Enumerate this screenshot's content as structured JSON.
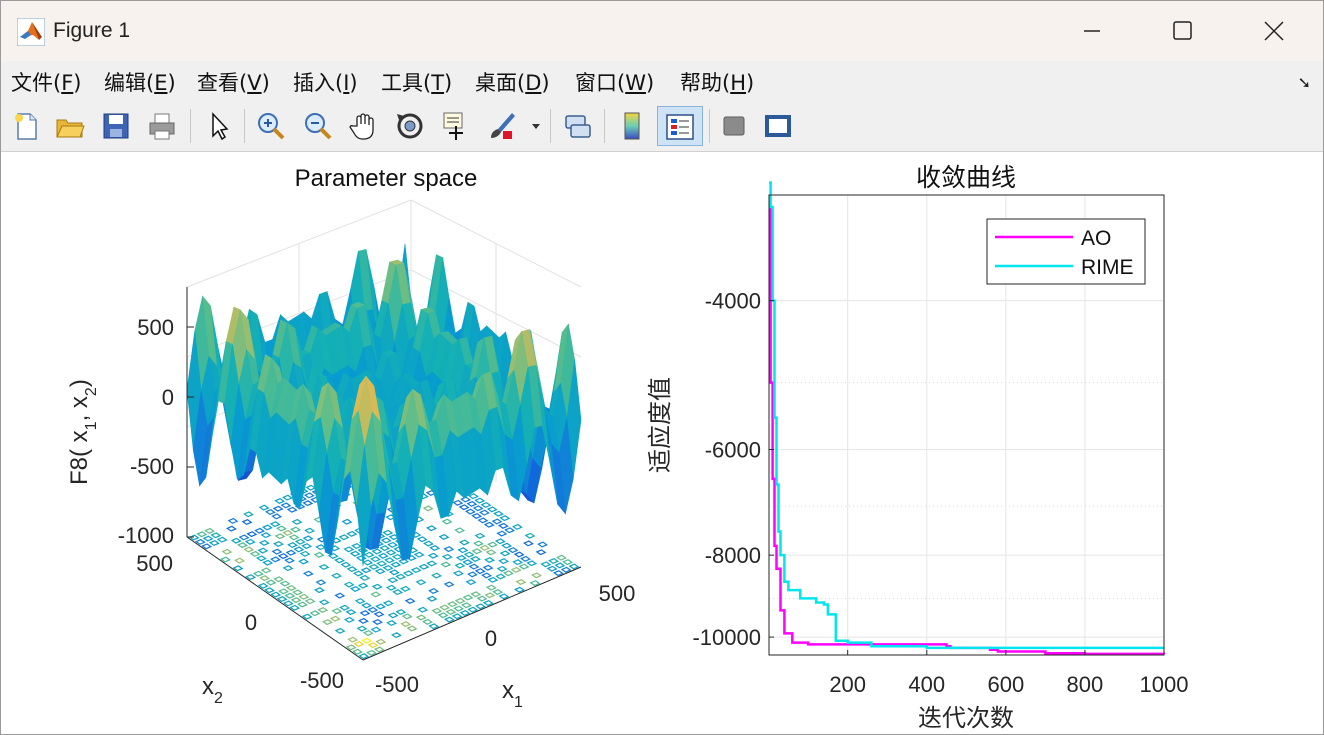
{
  "window": {
    "title": "Figure 1"
  },
  "menu": {
    "items": [
      {
        "label": "文件(F)",
        "pre": "文件(",
        "acc": "F",
        "post": ")"
      },
      {
        "label": "编辑(E)",
        "pre": "编辑(",
        "acc": "E",
        "post": ")"
      },
      {
        "label": "查看(V)",
        "pre": "查看(",
        "acc": "V",
        "post": ")"
      },
      {
        "label": "插入(I)",
        "pre": "插入(",
        "acc": "I",
        "post": ")"
      },
      {
        "label": "工具(T)",
        "pre": "工具(",
        "acc": "T",
        "post": ")"
      },
      {
        "label": "桌面(D)",
        "pre": "桌面(",
        "acc": "D",
        "post": ")"
      },
      {
        "label": "窗口(W)",
        "pre": "窗口(",
        "acc": "W",
        "post": ")"
      },
      {
        "label": "帮助(H)",
        "pre": "帮助(",
        "acc": "H",
        "post": ")"
      }
    ]
  },
  "toolbar": {
    "icons": [
      "new-figure-icon",
      "open-file-icon",
      "save-icon",
      "print-icon",
      "select-arrow-icon",
      "zoom-in-icon",
      "zoom-out-icon",
      "pan-hand-icon",
      "rotate-3d-icon",
      "data-cursor-icon",
      "brush-icon",
      "link-plot-icon",
      "colorbar-icon",
      "legend-icon",
      "hide-plot-tools-icon",
      "show-plot-tools-icon"
    ]
  },
  "surface_plot": {
    "title": "Parameter space",
    "zlabel_main": "F8( x",
    "zlabel_sub1": "1",
    "zlabel_sep": ", x",
    "zlabel_sub2": "2",
    "zlabel_end": ")",
    "xlabel_main": "x",
    "xlabel_sub": "1",
    "ylabel_main": "x",
    "ylabel_sub": "2",
    "z_ticks": [
      "500",
      "0",
      "-500",
      "-1000"
    ],
    "x_ticks": [
      "-500",
      "0",
      "500"
    ],
    "y_ticks": [
      "500",
      "0",
      "-500"
    ],
    "function": "F8"
  },
  "chart_data": {
    "type": "line",
    "title": "收敛曲线",
    "xlabel": "迭代次数",
    "ylabel": "适应度值",
    "xlim": [
      1,
      1000
    ],
    "ylim": [
      -10500,
      -3000
    ],
    "yscale": "symlog",
    "grid": true,
    "x_ticks": [
      "200",
      "400",
      "600",
      "800",
      "1000"
    ],
    "y_ticks": [
      "-4000",
      "-6000",
      "-8000",
      "-10000"
    ],
    "legend_position": "top-right",
    "series": [
      {
        "name": "AO",
        "color": "#ff00ff",
        "x": [
          1,
          5,
          10,
          15,
          20,
          30,
          40,
          60,
          100,
          200,
          440,
          450,
          460,
          520,
          560,
          580,
          700,
          800,
          1000
        ],
        "y": [
          -3100,
          -5000,
          -6500,
          -7800,
          -8300,
          -9300,
          -9900,
          -10150,
          -10200,
          -10200,
          -10200,
          -10250,
          -10300,
          -10300,
          -10350,
          -10400,
          -10450,
          -10470,
          -10480
        ]
      },
      {
        "name": "RIME",
        "color": "#00e5ee",
        "x": [
          1,
          5,
          10,
          15,
          20,
          25,
          30,
          40,
          50,
          80,
          100,
          120,
          140,
          150,
          170,
          200,
          260,
          400,
          600,
          1000
        ],
        "y": [
          -2900,
          -3100,
          -4000,
          -5500,
          -6600,
          -7500,
          -8000,
          -8600,
          -8800,
          -9000,
          -9000,
          -9100,
          -9150,
          -9400,
          -10100,
          -10150,
          -10250,
          -10300,
          -10300,
          -10300
        ]
      }
    ]
  }
}
